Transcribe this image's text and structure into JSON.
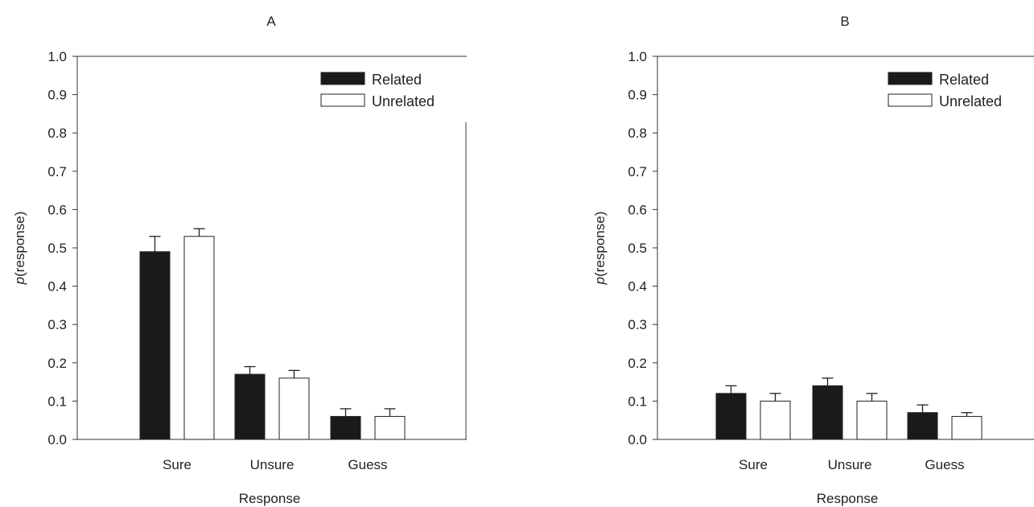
{
  "chart_data": [
    {
      "type": "bar",
      "title": "A",
      "xlabel": "Response",
      "ylabel_prefix": "p",
      "ylabel_suffix": "(response)",
      "categories": [
        "Sure",
        "Unsure",
        "Guess"
      ],
      "ylim": [
        0,
        1.0
      ],
      "yticks": [
        "0.0",
        "0.1",
        "0.2",
        "0.3",
        "0.4",
        "0.5",
        "0.6",
        "0.7",
        "0.8",
        "0.9",
        "1.0"
      ],
      "legend_position": "top-right",
      "grid": false,
      "series": [
        {
          "name": "Related",
          "values": [
            0.49,
            0.17,
            0.06
          ],
          "errors": [
            0.04,
            0.02,
            0.02
          ],
          "fill": "#1a1a1a"
        },
        {
          "name": "Unrelated",
          "values": [
            0.53,
            0.16,
            0.06
          ],
          "errors": [
            0.02,
            0.02,
            0.02
          ],
          "fill": "#ffffff"
        }
      ]
    },
    {
      "type": "bar",
      "title": "B",
      "xlabel": "Response",
      "ylabel_prefix": "p",
      "ylabel_suffix": "(response)",
      "categories": [
        "Sure",
        "Unsure",
        "Guess"
      ],
      "ylim": [
        0,
        1.0
      ],
      "yticks": [
        "0.0",
        "0.1",
        "0.2",
        "0.3",
        "0.4",
        "0.5",
        "0.6",
        "0.7",
        "0.8",
        "0.9",
        "1.0"
      ],
      "legend_position": "top-right",
      "grid": false,
      "series": [
        {
          "name": "Related",
          "values": [
            0.12,
            0.14,
            0.07
          ],
          "errors": [
            0.02,
            0.02,
            0.02
          ],
          "fill": "#1a1a1a"
        },
        {
          "name": "Unrelated",
          "values": [
            0.1,
            0.1,
            0.06
          ],
          "errors": [
            0.02,
            0.02,
            0.01
          ],
          "fill": "#ffffff"
        }
      ]
    }
  ]
}
